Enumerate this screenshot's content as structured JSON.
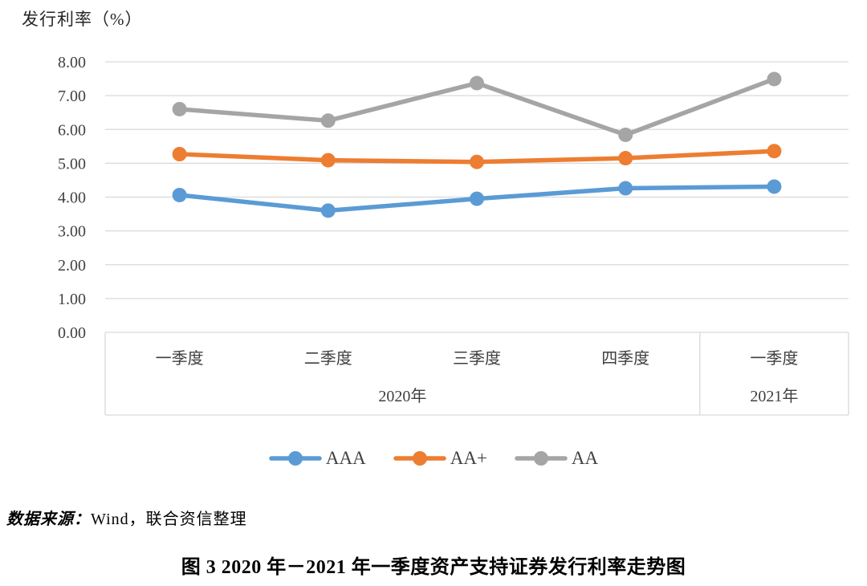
{
  "figure": {
    "background_color": "#ffffff",
    "text_color": "#404040"
  },
  "chart_data": {
    "type": "line",
    "title": "发行利率（%）",
    "categories": [
      "一季度",
      "二季度",
      "三季度",
      "四季度",
      "一季度"
    ],
    "category_groups": [
      {
        "label": "2020年",
        "span": 4
      },
      {
        "label": "2021年",
        "span": 1
      }
    ],
    "series": [
      {
        "name": "AAA",
        "color": "#5B9BD5",
        "values": [
          4.06,
          3.6,
          3.95,
          4.26,
          4.31
        ]
      },
      {
        "name": "AA+",
        "color": "#ED7D31",
        "values": [
          5.27,
          5.09,
          5.04,
          5.15,
          5.36
        ]
      },
      {
        "name": "AA",
        "color": "#A5A5A5",
        "values": [
          6.6,
          6.26,
          7.37,
          5.84,
          7.49
        ]
      }
    ],
    "ylim": [
      0,
      8
    ],
    "ytick_step": 1,
    "ytick_labels": [
      "0.00",
      "1.00",
      "2.00",
      "3.00",
      "4.00",
      "5.00",
      "6.00",
      "7.00",
      "8.00"
    ],
    "grid": true,
    "gridline_color": "#D9D9D9",
    "legend_position": "bottom"
  },
  "source_note": {
    "label": "数据来源：",
    "text": "Wind，联合资信整理"
  },
  "caption": "图 3  2020 年－2021 年一季度资产支持证券发行利率走势图"
}
